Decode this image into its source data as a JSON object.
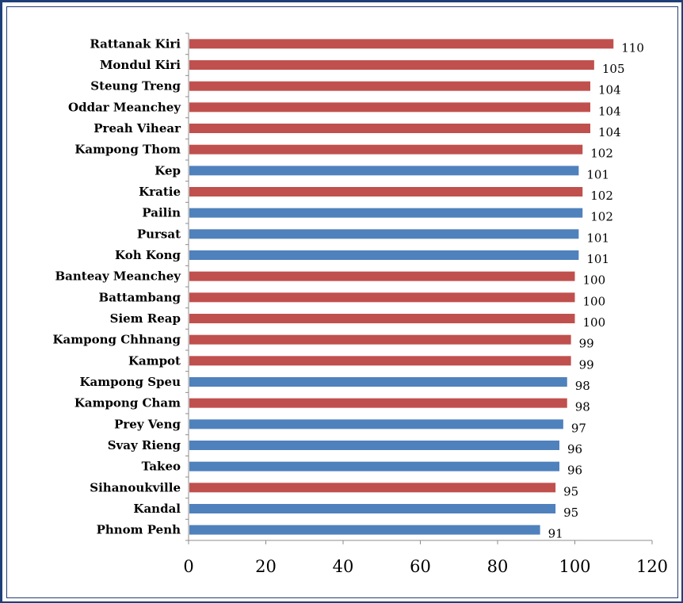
{
  "chart_data": {
    "type": "bar",
    "orientation": "horizontal",
    "title": "",
    "xlabel": "",
    "ylabel": "",
    "xlim": [
      0,
      120
    ],
    "xticks": [
      0,
      20,
      40,
      60,
      80,
      100,
      120
    ],
    "grid": false,
    "legend": "none",
    "colors": {
      "red": "#c0504d",
      "blue": "#4f81bd"
    },
    "categories": [
      "Rattanak Kiri",
      "Mondul Kiri",
      "Steung Treng",
      "Oddar Meanchey",
      "Preah Vihear",
      "Kampong Thom",
      "Kep",
      "Kratie",
      "Pailin",
      "Pursat",
      "Koh Kong",
      "Banteay Meanchey",
      "Battambang",
      "Siem Reap",
      "Kampong Chhnang",
      "Kampot",
      "Kampong Speu",
      "Kampong Cham",
      "Prey Veng",
      "Svay Rieng",
      "Takeo",
      "Sihanoukville",
      "Kandal",
      "Phnom Penh"
    ],
    "values": [
      110,
      105,
      104,
      104,
      104,
      102,
      101,
      102,
      102,
      101,
      101,
      100,
      100,
      100,
      99,
      99,
      98,
      98,
      97,
      96,
      96,
      95,
      95,
      91
    ],
    "bar_colors": [
      "red",
      "red",
      "red",
      "red",
      "red",
      "red",
      "blue",
      "red",
      "blue",
      "blue",
      "blue",
      "red",
      "red",
      "red",
      "red",
      "red",
      "blue",
      "red",
      "blue",
      "blue",
      "blue",
      "red",
      "blue",
      "blue"
    ]
  }
}
